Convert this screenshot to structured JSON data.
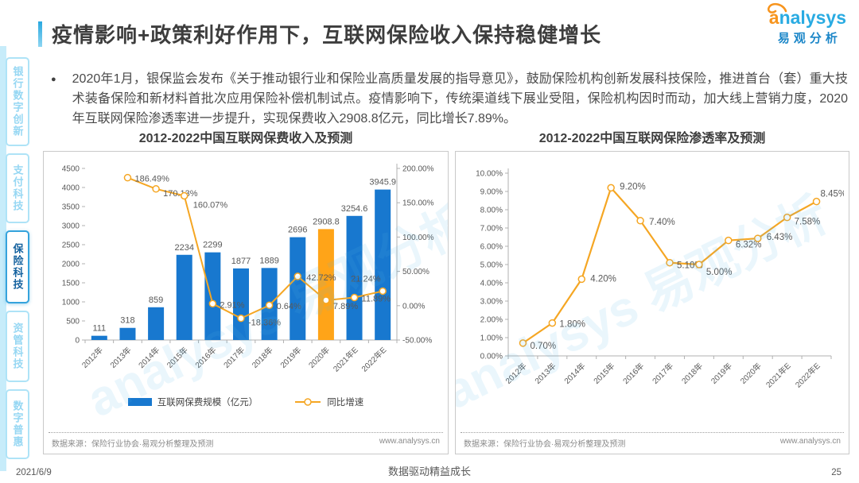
{
  "page": {
    "title": "疫情影响+政策利好作用下，互联网保险收入保持稳健增长",
    "logo": {
      "brand": "analysys",
      "brand_cn": "易观分析"
    },
    "watermark": "analysys 易观分析",
    "footer": {
      "date": "2021/6/9",
      "slogan": "数据驱动精益成长",
      "page_number": "25"
    }
  },
  "sidebar": {
    "items": [
      {
        "label": "银行数字创新",
        "active": false
      },
      {
        "label": "支付科技",
        "active": false
      },
      {
        "label": "保险科技",
        "active": true
      },
      {
        "label": "资管科技",
        "active": false
      },
      {
        "label": "数字普惠",
        "active": false
      }
    ]
  },
  "bullet": {
    "marker": "●",
    "text": "2020年1月，银保监会发布《关于推动银行业和保险业高质量发展的指导意见》，鼓励保险机构创新发展科技保险，推进首台（套）重大技术装备保险和新材料首批次应用保险补偿机制试点。疫情影响下，传统渠道线下展业受阻，保险机构因时而动，加大线上营销力度，2020年互联网保险渗透率进一步提升，实现保费收入2908.8亿元，同比增长7.89%。"
  },
  "chart_data": [
    {
      "type": "bar",
      "title": "2012-2022中国互联网保费收入及预测",
      "categories": [
        "2012年",
        "2013年",
        "2014年",
        "2015年",
        "2016年",
        "2017年",
        "2018年",
        "2019年",
        "2020年",
        "2021年E",
        "2022年E"
      ],
      "series": [
        {
          "name": "互联网保费规模（亿元）",
          "type": "bar",
          "values": [
            111,
            318,
            859,
            2234,
            2299,
            1877,
            1889,
            2696,
            2908.8,
            3254.6,
            3945.9
          ],
          "color": "#1878cf",
          "highlight_index": 8,
          "highlight_color": "#ffa418"
        },
        {
          "name": "同比增速",
          "type": "line",
          "axis": "right",
          "values": [
            null,
            186.49,
            170.13,
            160.07,
            2.91,
            -18.36,
            0.64,
            42.72,
            7.89,
            11.89,
            21.24
          ],
          "color": "#f5a623",
          "unit": "%"
        }
      ],
      "y_left": {
        "min": 0,
        "max": 4500,
        "step": 500
      },
      "y_right": {
        "min": -50,
        "max": 200,
        "step": 50
      },
      "legend_position": "bottom",
      "grid": false,
      "source": "数据来源：保险行业协会·易观分析整理及预测",
      "website": "www.analysys.cn"
    },
    {
      "type": "line",
      "title": "2012-2022中国互联网保险渗透率及预测",
      "categories": [
        "2012年",
        "2013年",
        "2014年",
        "2015年",
        "2016年",
        "2017年",
        "2018年",
        "2019年",
        "2020年",
        "2021年E",
        "2022年E"
      ],
      "values": [
        0.7,
        1.8,
        4.2,
        9.2,
        7.4,
        5.1,
        5.0,
        6.32,
        6.43,
        7.58,
        8.45
      ],
      "color": "#f5a623",
      "ylim": [
        0,
        10
      ],
      "y_step": 1,
      "grid": false,
      "source": "数据来源：保险行业协会·易观分析整理及预测",
      "website": "www.analysys.cn"
    }
  ]
}
